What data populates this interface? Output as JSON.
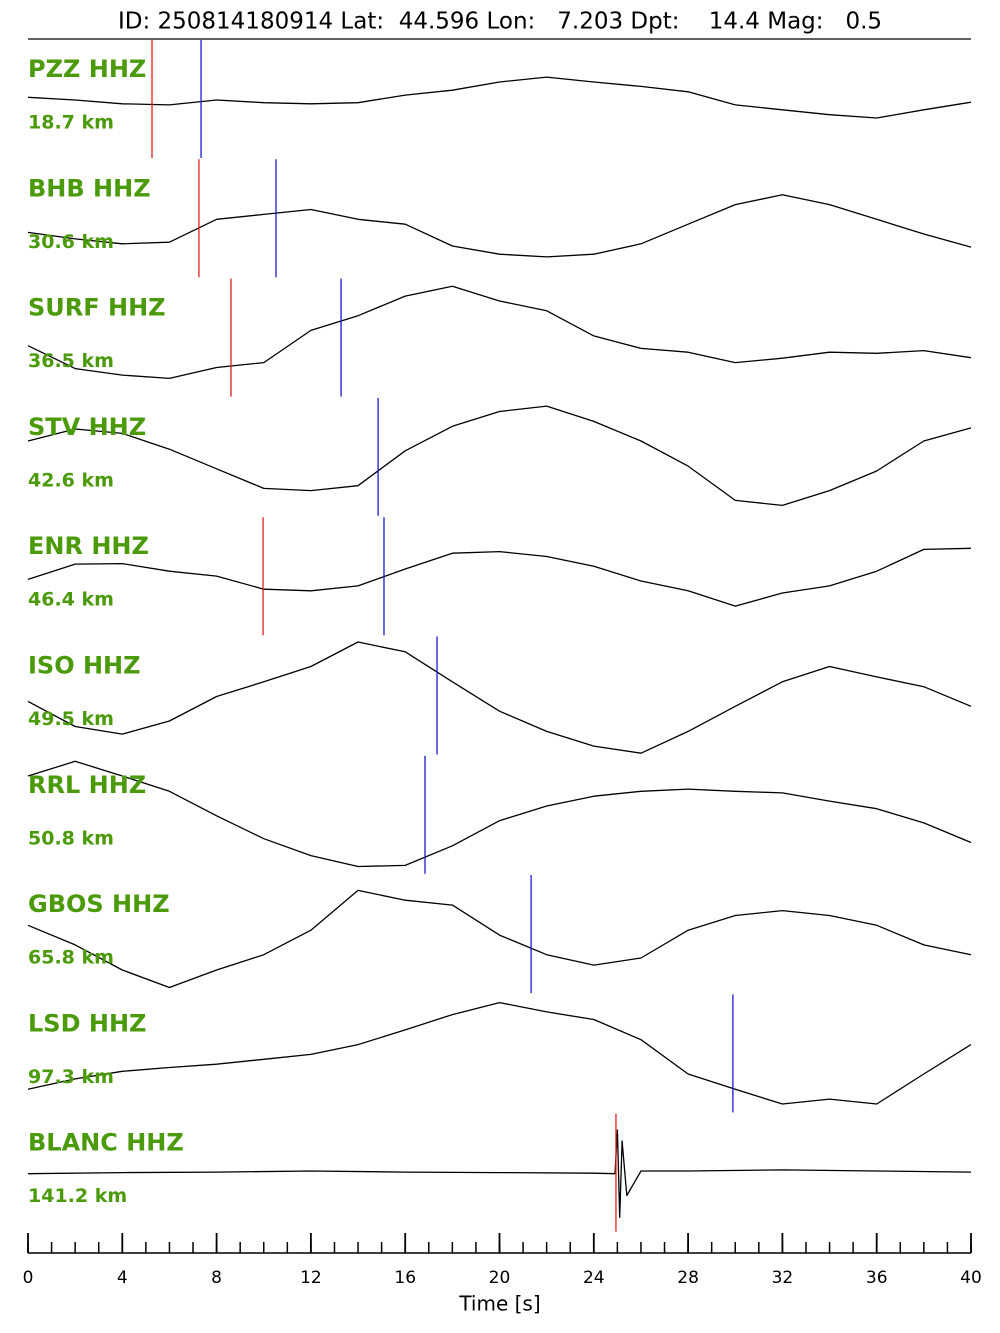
{
  "chart_data": {
    "type": "seismogram",
    "title": "ID: 250814180914 Lat:  44.596 Lon:   7.203 Dpt:    14.4 Mag:   0.5",
    "xlabel": "Time [s]",
    "xlim": [
      0,
      40
    ],
    "xticks": [
      0,
      4,
      8,
      12,
      16,
      20,
      24,
      28,
      32,
      36,
      40
    ],
    "xminorticks": [
      0,
      1,
      2,
      3,
      4,
      5,
      6,
      7,
      8,
      9,
      10,
      11,
      12,
      13,
      14,
      15,
      16,
      17,
      18,
      19,
      20,
      21,
      22,
      23,
      24,
      25,
      26,
      27,
      28,
      29,
      30,
      31,
      32,
      33,
      34,
      35,
      36,
      37,
      38,
      39,
      40
    ],
    "ylim": [
      -1.1,
      1.1
    ],
    "trace_color": "#000000",
    "p_color": "#e0201b",
    "s_color": "#1a1ad0",
    "traces": [
      {
        "name": "PZZ HHZ",
        "distance": "18.7 km",
        "p_pick": 5.26,
        "s_pick": 7.34,
        "x": [
          0,
          2,
          4,
          6,
          8,
          10,
          12,
          14,
          16,
          18,
          20,
          22,
          24,
          26,
          28,
          30,
          32,
          34,
          36,
          38,
          40
        ],
        "values": [
          0.05,
          0,
          -0.07,
          -0.09,
          0,
          -0.05,
          -0.07,
          -0.05,
          0.09,
          0.18,
          0.33,
          0.42,
          0.33,
          0.25,
          0.15,
          -0.09,
          -0.18,
          -0.27,
          -0.33,
          -0.18,
          -0.04
        ]
      },
      {
        "name": "BHB HHZ",
        "distance": "30.6 km",
        "p_pick": 7.25,
        "s_pick": 10.52,
        "x": [
          0,
          2,
          4,
          6,
          8,
          10,
          12,
          14,
          16,
          18,
          20,
          22,
          24,
          26,
          28,
          30,
          32,
          34,
          36,
          38,
          40
        ],
        "values": [
          -0.24,
          -0.36,
          -0.45,
          -0.42,
          0,
          0.09,
          0.18,
          0,
          -0.09,
          -0.49,
          -0.64,
          -0.69,
          -0.64,
          -0.45,
          -0.09,
          0.27,
          0.45,
          0.27,
          0,
          -0.27,
          -0.51
        ]
      },
      {
        "name": "SURF HHZ",
        "distance": "36.5 km",
        "p_pick": 8.61,
        "s_pick": 13.28,
        "x": [
          0,
          2,
          4,
          6,
          8,
          10,
          12,
          14,
          16,
          18,
          20,
          22,
          24,
          26,
          28,
          30,
          32,
          34,
          36,
          38,
          40
        ],
        "values": [
          -0.13,
          -0.55,
          -0.67,
          -0.73,
          -0.53,
          -0.44,
          0.15,
          0.42,
          0.78,
          0.96,
          0.69,
          0.51,
          0.05,
          -0.18,
          -0.25,
          -0.44,
          -0.36,
          -0.25,
          -0.27,
          -0.22,
          -0.35
        ]
      },
      {
        "name": "STV HHZ",
        "distance": "42.6 km",
        "s_pick": 14.85,
        "x": [
          0,
          2,
          4,
          6,
          8,
          10,
          12,
          14,
          16,
          18,
          20,
          22,
          24,
          26,
          28,
          30,
          32,
          34,
          36,
          38,
          40
        ],
        "values": [
          0.31,
          0.53,
          0.45,
          0.16,
          -0.2,
          -0.56,
          -0.6,
          -0.51,
          0.13,
          0.58,
          0.85,
          0.95,
          0.67,
          0.31,
          -0.15,
          -0.78,
          -0.87,
          -0.6,
          -0.24,
          0.31,
          0.55
        ]
      },
      {
        "name": "ENR HHZ",
        "distance": "46.4 km",
        "p_pick": 9.97,
        "s_pick": 15.1,
        "x": [
          0,
          2,
          4,
          6,
          8,
          10,
          12,
          14,
          16,
          18,
          20,
          22,
          24,
          26,
          28,
          30,
          32,
          34,
          36,
          38,
          40
        ],
        "values": [
          -0.04,
          0.24,
          0.25,
          0.11,
          0.02,
          -0.22,
          -0.25,
          -0.16,
          0.15,
          0.44,
          0.47,
          0.38,
          0.2,
          -0.07,
          -0.25,
          -0.53,
          -0.29,
          -0.16,
          0.11,
          0.51,
          0.53
        ]
      },
      {
        "name": "ISO HHZ",
        "distance": "49.5 km",
        "s_pick": 17.35,
        "x": [
          0,
          2,
          4,
          6,
          8,
          10,
          12,
          14,
          16,
          18,
          20,
          22,
          24,
          26,
          28,
          30,
          32,
          34,
          36,
          38,
          40
        ],
        "values": [
          -0.09,
          -0.55,
          -0.69,
          -0.45,
          0,
          0.27,
          0.55,
          1,
          0.82,
          0.27,
          -0.27,
          -0.64,
          -0.91,
          -1.04,
          -0.64,
          -0.18,
          0.27,
          0.55,
          0.36,
          0.18,
          -0.18
        ]
      },
      {
        "name": "RRL HHZ",
        "distance": "50.8 km",
        "s_pick": 16.84,
        "x": [
          0,
          2,
          4,
          6,
          8,
          10,
          12,
          14,
          16,
          18,
          20,
          22,
          24,
          26,
          28,
          30,
          32,
          34,
          36,
          38,
          40
        ],
        "values": [
          0.73,
          1,
          0.73,
          0.45,
          0,
          -0.42,
          -0.73,
          -0.93,
          -0.91,
          -0.55,
          -0.09,
          0.18,
          0.36,
          0.45,
          0.49,
          0.45,
          0.42,
          0.27,
          0.13,
          -0.13,
          -0.49
        ]
      },
      {
        "name": "GBOS HHZ",
        "distance": "65.8 km",
        "s_pick": 21.34,
        "x": [
          0,
          2,
          4,
          6,
          8,
          10,
          12,
          14,
          16,
          18,
          20,
          22,
          24,
          26,
          28,
          30,
          32,
          34,
          36,
          38,
          40
        ],
        "values": [
          0.18,
          -0.18,
          -0.64,
          -0.96,
          -0.64,
          -0.36,
          0.09,
          0.82,
          0.64,
          0.55,
          0,
          -0.36,
          -0.55,
          -0.42,
          0.09,
          0.36,
          0.45,
          0.36,
          0.18,
          -0.18,
          -0.36
        ]
      },
      {
        "name": "LSD HHZ",
        "distance": "97.3 km",
        "s_pick": 29.9,
        "x": [
          0,
          2,
          4,
          6,
          8,
          10,
          12,
          14,
          16,
          18,
          20,
          22,
          24,
          26,
          28,
          30,
          32,
          34,
          36,
          38,
          40
        ],
        "values": [
          -0.64,
          -0.45,
          -0.31,
          -0.24,
          -0.18,
          -0.09,
          0,
          0.18,
          0.45,
          0.73,
          0.95,
          0.78,
          0.64,
          0.27,
          -0.36,
          -0.64,
          -0.91,
          -0.82,
          -0.91,
          -0.36,
          0.18
        ]
      },
      {
        "name": "BLANC HHZ",
        "distance": "141.2 km",
        "p_pick": 24.94,
        "x": [
          0,
          4,
          8,
          12,
          16,
          20,
          24,
          24.9,
          25,
          25.1,
          25.2,
          25.4,
          26,
          28,
          32,
          36,
          40
        ],
        "values": [
          0,
          0.02,
          0.03,
          0.05,
          0.03,
          0.02,
          0.01,
          0,
          0.8,
          -0.8,
          0.6,
          -0.4,
          0.05,
          0.05,
          0.07,
          0.05,
          0.03
        ]
      }
    ]
  }
}
